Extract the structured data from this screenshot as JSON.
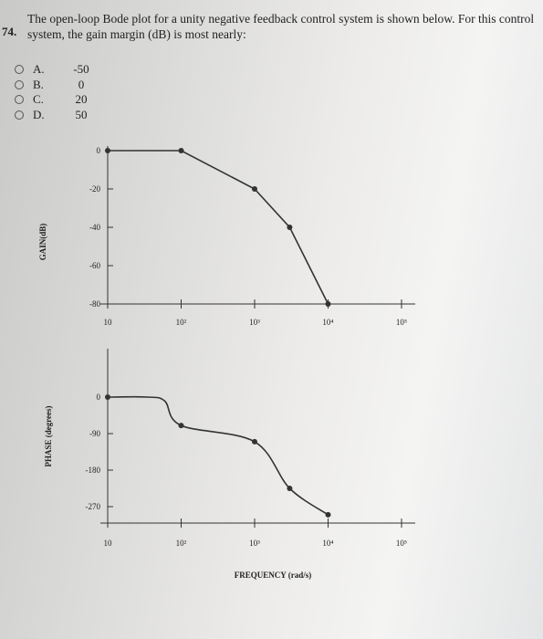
{
  "question": {
    "number": "74.",
    "text": "The open-loop Bode plot for a unity negative feedback control system is shown below. For this control system, the gain margin (dB) is most nearly:"
  },
  "options": [
    {
      "label": "A.",
      "value": "-50"
    },
    {
      "label": "B.",
      "value": "0"
    },
    {
      "label": "C.",
      "value": "20"
    },
    {
      "label": "D.",
      "value": "50"
    }
  ],
  "chart_data": [
    {
      "type": "line",
      "ylabel": "GAIN(dB)",
      "xscale": "log",
      "xlim": [
        10,
        100000
      ],
      "ylim": [
        -80,
        0
      ],
      "xticks": [
        "10",
        "10²",
        "10³",
        "10⁴",
        "10⁵"
      ],
      "yticks": [
        "0",
        "-20",
        "-40",
        "-60",
        "-80"
      ],
      "series": [
        {
          "x": [
            10,
            100,
            1000,
            3000,
            10000
          ],
          "y": [
            0,
            0,
            -20,
            -40,
            -80
          ]
        }
      ]
    },
    {
      "type": "line",
      "ylabel": "PHASE (degrees)",
      "xlabel": "FREQUENCY (rad/s)",
      "xscale": "log",
      "xlim": [
        10,
        100000
      ],
      "ylim": [
        -270,
        0
      ],
      "xticks": [
        "10",
        "10²",
        "10³",
        "10⁴",
        "10⁵"
      ],
      "yticks": [
        "0",
        "-90",
        "-180",
        "-270"
      ],
      "series": [
        {
          "x": [
            10,
            35,
            60,
            100,
            1000,
            3000,
            10000
          ],
          "y": [
            0,
            0,
            -10,
            -70,
            -110,
            -225,
            -290
          ]
        }
      ]
    }
  ]
}
